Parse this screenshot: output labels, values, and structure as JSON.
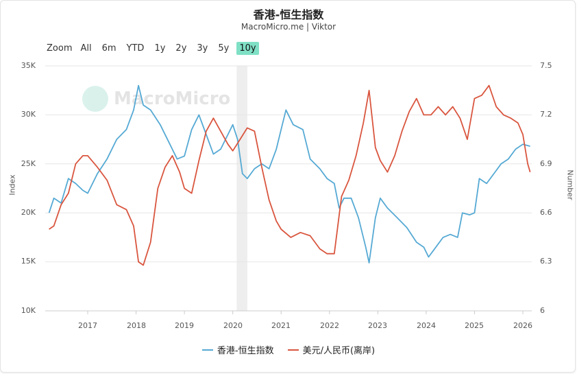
{
  "title": "香港-恒生指数",
  "subtitle": "MacroMicro.me | Viktor",
  "zoom": {
    "label": "Zoom",
    "buttons": [
      "All",
      "6m",
      "YTD",
      "1y",
      "2y",
      "3y",
      "5y",
      "10y"
    ],
    "active": "10y"
  },
  "watermark": "MacroMicro",
  "chart_data": {
    "type": "line",
    "title": "香港-恒生指数",
    "subtitle": "MacroMicro.me | Viktor",
    "x_ticks": [
      "2017",
      "2018",
      "2019",
      "2020",
      "2021",
      "2022",
      "2023",
      "2024",
      "2025",
      "2026"
    ],
    "xlim": [
      "2016-03",
      "2026-03"
    ],
    "y_left": {
      "label": "Index",
      "ticks": [
        "10K",
        "15K",
        "20K",
        "25K",
        "30K",
        "35K"
      ],
      "range": [
        10000,
        35000
      ]
    },
    "y_right": {
      "label": "Number",
      "ticks": [
        "6",
        "6.3",
        "6.6",
        "6.9",
        "7.2",
        "7.5"
      ],
      "range": [
        6,
        7.5
      ]
    },
    "shaded_region": {
      "from": "2020.08",
      "to": "2020.30",
      "color": "#eeeeee"
    },
    "grid": true,
    "legend_position": "bottom-center",
    "series": [
      {
        "name": "香港-恒生指数",
        "color": "#55a9d4",
        "axis": "left",
        "x": [
          2016.2,
          2016.3,
          2016.45,
          2016.6,
          2016.75,
          2016.9,
          2017.0,
          2017.2,
          2017.4,
          2017.6,
          2017.8,
          2017.95,
          2018.05,
          2018.15,
          2018.3,
          2018.5,
          2018.7,
          2018.85,
          2019.0,
          2019.15,
          2019.3,
          2019.45,
          2019.6,
          2019.75,
          2019.9,
          2020.0,
          2020.1,
          2020.2,
          2020.3,
          2020.45,
          2020.6,
          2020.75,
          2020.9,
          2021.0,
          2021.1,
          2021.25,
          2021.45,
          2021.6,
          2021.8,
          2021.95,
          2022.1,
          2022.2,
          2022.3,
          2022.45,
          2022.6,
          2022.75,
          2022.82,
          2022.95,
          2023.05,
          2023.2,
          2023.4,
          2023.6,
          2023.8,
          2023.95,
          2024.05,
          2024.2,
          2024.35,
          2024.5,
          2024.65,
          2024.75,
          2024.9,
          2025.0,
          2025.1,
          2025.25,
          2025.4,
          2025.55,
          2025.7,
          2025.85,
          2026.0,
          2026.15
        ],
        "values": [
          20000,
          21500,
          21000,
          23500,
          23000,
          22300,
          22000,
          24000,
          25500,
          27500,
          28500,
          30500,
          33000,
          31000,
          30500,
          29000,
          27000,
          25500,
          25800,
          28500,
          30000,
          28000,
          26000,
          26500,
          28000,
          29000,
          27500,
          24000,
          23500,
          24500,
          25000,
          24500,
          26500,
          28500,
          30500,
          29000,
          28500,
          25500,
          24500,
          23500,
          23000,
          20500,
          21500,
          21500,
          19500,
          16500,
          14900,
          19500,
          21500,
          20500,
          19500,
          18500,
          17000,
          16500,
          15500,
          16500,
          17500,
          17800,
          17500,
          20000,
          19800,
          20000,
          23500,
          23000,
          24000,
          25000,
          25500,
          26500,
          27000,
          26800
        ]
      },
      {
        "name": "美元/人民币(离岸)",
        "color": "#d9553e",
        "axis": "right",
        "x": [
          2016.2,
          2016.3,
          2016.45,
          2016.6,
          2016.75,
          2016.9,
          2017.0,
          2017.2,
          2017.4,
          2017.6,
          2017.8,
          2017.95,
          2018.05,
          2018.15,
          2018.3,
          2018.45,
          2018.6,
          2018.75,
          2018.9,
          2019.0,
          2019.15,
          2019.3,
          2019.45,
          2019.6,
          2019.75,
          2019.9,
          2020.0,
          2020.15,
          2020.3,
          2020.45,
          2020.6,
          2020.75,
          2020.9,
          2021.0,
          2021.2,
          2021.4,
          2021.6,
          2021.8,
          2021.95,
          2022.1,
          2022.25,
          2022.4,
          2022.55,
          2022.7,
          2022.82,
          2022.95,
          2023.05,
          2023.2,
          2023.35,
          2023.5,
          2023.65,
          2023.8,
          2023.95,
          2024.1,
          2024.25,
          2024.4,
          2024.55,
          2024.7,
          2024.85,
          2025.0,
          2025.15,
          2025.3,
          2025.45,
          2025.6,
          2025.75,
          2025.9,
          2026.0,
          2026.1,
          2026.15
        ],
        "values": [
          6.5,
          6.52,
          6.65,
          6.72,
          6.9,
          6.95,
          6.95,
          6.88,
          6.8,
          6.65,
          6.62,
          6.52,
          6.3,
          6.28,
          6.42,
          6.75,
          6.88,
          6.95,
          6.85,
          6.75,
          6.72,
          6.92,
          7.1,
          7.18,
          7.1,
          7.02,
          6.98,
          7.05,
          7.12,
          7.1,
          6.88,
          6.68,
          6.55,
          6.5,
          6.45,
          6.48,
          6.46,
          6.38,
          6.35,
          6.35,
          6.7,
          6.8,
          6.95,
          7.15,
          7.35,
          7.0,
          6.92,
          6.85,
          6.95,
          7.1,
          7.22,
          7.3,
          7.2,
          7.2,
          7.25,
          7.2,
          7.25,
          7.18,
          7.05,
          7.3,
          7.32,
          7.38,
          7.25,
          7.2,
          7.18,
          7.15,
          7.08,
          6.9,
          6.85
        ]
      }
    ]
  }
}
